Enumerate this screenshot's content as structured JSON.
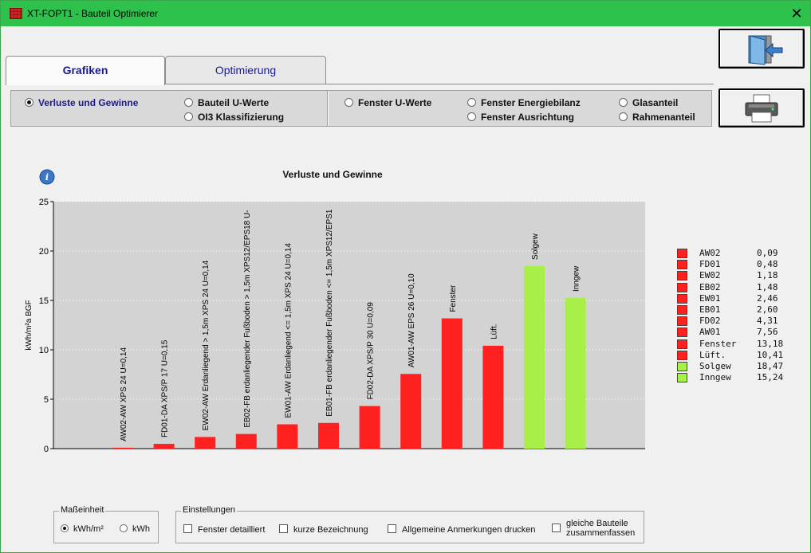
{
  "window": {
    "title": "XT-FOPT1 - Bauteil Optimierer",
    "close_glyph": "✕",
    "app_icon": "brick-wall-icon"
  },
  "toolbar": {
    "exit_icon": "exit-door-icon",
    "print_icon": "printer-icon"
  },
  "tabs": [
    {
      "label": "Grafiken",
      "active": true
    },
    {
      "label": "Optimierung",
      "active": false
    }
  ],
  "options": [
    {
      "label": "Verluste und Gewinne",
      "selected": true
    },
    {
      "label": "Bauteil U-Werte",
      "selected": false
    },
    {
      "label": "OI3 Klassifizierung",
      "selected": false
    },
    {
      "label": "Fenster U-Werte",
      "selected": false
    },
    {
      "label": "Fenster Energiebilanz",
      "selected": false
    },
    {
      "label": "Fenster Ausrichtung",
      "selected": false
    },
    {
      "label": "Glasanteil",
      "selected": false
    },
    {
      "label": "Rahmenanteil",
      "selected": false
    }
  ],
  "info_icon": "info-icon",
  "chart_data": {
    "type": "bar",
    "title": "Verluste und Gewinne",
    "ylabel": "kWh/m²a BGF",
    "ylim": [
      0,
      25
    ],
    "yticks": [
      0,
      5,
      10,
      15,
      20,
      25
    ],
    "grid": true,
    "legend_placement": "right",
    "colors": {
      "loss": "#ff2020",
      "gain": "#a8f048",
      "plot_bg": "#d3d3d3"
    },
    "bars": [
      {
        "label": "AW02-AW XPS 24 U=0,14",
        "value": 0.09,
        "kind": "loss"
      },
      {
        "label": "FD01-DA XPS/P 17 U=0,15",
        "value": 0.48,
        "kind": "loss"
      },
      {
        "label": "EW02-AW Erdanliegend > 1,5m XPS 24 U=0,14",
        "value": 1.18,
        "kind": "loss"
      },
      {
        "label": "EB02-FB erdanliegender Fußboden > 1,5m XPS12/EPS18 U-",
        "value": 1.48,
        "kind": "loss"
      },
      {
        "label": "EW01-AW Erdanliegend <= 1,5m XPS 24 U=0,14",
        "value": 2.46,
        "kind": "loss"
      },
      {
        "label": "EB01-FB erdanliegender Fußboden <= 1,5m XPS12/EPS1",
        "value": 2.6,
        "kind": "loss"
      },
      {
        "label": "FD02-DA XPS/P 30 U=0,09",
        "value": 4.31,
        "kind": "loss"
      },
      {
        "label": "AW01-AW EPS 26 U=0,10",
        "value": 7.56,
        "kind": "loss"
      },
      {
        "label": "Fenster",
        "value": 13.18,
        "kind": "loss"
      },
      {
        "label": "Lüft.",
        "value": 10.41,
        "kind": "loss"
      },
      {
        "label": "Solgew",
        "value": 18.47,
        "kind": "gain"
      },
      {
        "label": "Inngew",
        "value": 15.24,
        "kind": "gain"
      }
    ],
    "legend": [
      {
        "name": "AW02",
        "value": "0,09",
        "kind": "loss"
      },
      {
        "name": "FD01",
        "value": "0,48",
        "kind": "loss"
      },
      {
        "name": "EW02",
        "value": "1,18",
        "kind": "loss"
      },
      {
        "name": "EB02",
        "value": "1,48",
        "kind": "loss"
      },
      {
        "name": "EW01",
        "value": "2,46",
        "kind": "loss"
      },
      {
        "name": "EB01",
        "value": "2,60",
        "kind": "loss"
      },
      {
        "name": "FD02",
        "value": "4,31",
        "kind": "loss"
      },
      {
        "name": "AW01",
        "value": "7,56",
        "kind": "loss"
      },
      {
        "name": "Fenster",
        "value": "13,18",
        "kind": "loss"
      },
      {
        "name": "Lüft.",
        "value": "10,41",
        "kind": "loss"
      },
      {
        "name": "Solgew",
        "value": "18,47",
        "kind": "gain"
      },
      {
        "name": "Inngew",
        "value": "15,24",
        "kind": "gain"
      }
    ]
  },
  "masseinheit": {
    "title": "Maßeinheit",
    "options": [
      {
        "label": "kWh/m²",
        "selected": true
      },
      {
        "label": "kWh",
        "selected": false
      }
    ]
  },
  "einstellungen": {
    "title": "Einstellungen",
    "checks": [
      {
        "label": "Fenster detailliert",
        "checked": false
      },
      {
        "label": "kurze Bezeichnung",
        "checked": false
      },
      {
        "label": "Allgemeine Anmerkungen drucken",
        "checked": false
      },
      {
        "label": "gleiche Bauteile",
        "label2": "zusammenfassen",
        "checked": false
      }
    ]
  }
}
